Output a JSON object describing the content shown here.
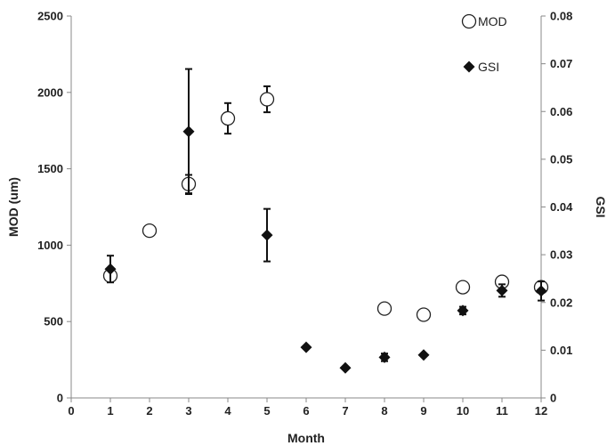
{
  "chart_data": {
    "type": "scatter",
    "xlabel": "Month",
    "ylabel_left": "MOD (um)",
    "ylabel_right": "GSI",
    "xlim": [
      0,
      12
    ],
    "xticks": [
      "0",
      "1",
      "2",
      "3",
      "4",
      "5",
      "6",
      "7",
      "8",
      "9",
      "10",
      "11",
      "12"
    ],
    "ylim_left": [
      0,
      2500
    ],
    "yticks_left": [
      "0",
      "500",
      "1000",
      "1500",
      "2000",
      "2500"
    ],
    "ylim_right": [
      0,
      0.08
    ],
    "yticks_right": [
      "0",
      "0.01",
      "0.02",
      "0.03",
      "0.04",
      "0.05",
      "0.06",
      "0.07",
      "0.08"
    ],
    "grid": false,
    "legend_position": "top-right",
    "series": [
      {
        "name": "MOD",
        "axis": "left",
        "marker": "open-circle",
        "color": "#222222",
        "points": [
          {
            "x": 1,
            "y": 800,
            "err": 35
          },
          {
            "x": 2,
            "y": 1095,
            "err": 0
          },
          {
            "x": 3,
            "y": 1400,
            "err": 60
          },
          {
            "x": 4,
            "y": 1830,
            "err": 100
          },
          {
            "x": 5,
            "y": 1955,
            "err": 85
          },
          {
            "x": 8,
            "y": 585,
            "err": 0
          },
          {
            "x": 9,
            "y": 545,
            "err": 0
          },
          {
            "x": 10,
            "y": 725,
            "err": 0
          },
          {
            "x": 11,
            "y": 760,
            "err": 0
          },
          {
            "x": 12,
            "y": 725,
            "err": 30
          }
        ]
      },
      {
        "name": "GSI",
        "axis": "right",
        "marker": "filled-diamond",
        "color": "#111111",
        "points": [
          {
            "x": 1,
            "y": 0.027,
            "err": 0.0028
          },
          {
            "x": 3,
            "y": 0.0558,
            "err": 0.0131
          },
          {
            "x": 5,
            "y": 0.0341,
            "err": 0.0055
          },
          {
            "x": 6,
            "y": 0.0106,
            "err": 0
          },
          {
            "x": 7,
            "y": 0.0063,
            "err": 0
          },
          {
            "x": 8,
            "y": 0.0085,
            "err": 0.0008
          },
          {
            "x": 9,
            "y": 0.009,
            "err": 0
          },
          {
            "x": 10,
            "y": 0.0183,
            "err": 0.0008
          },
          {
            "x": 11,
            "y": 0.0225,
            "err": 0.0013
          },
          {
            "x": 12,
            "y": 0.0224,
            "err": 0.002
          }
        ]
      }
    ]
  }
}
